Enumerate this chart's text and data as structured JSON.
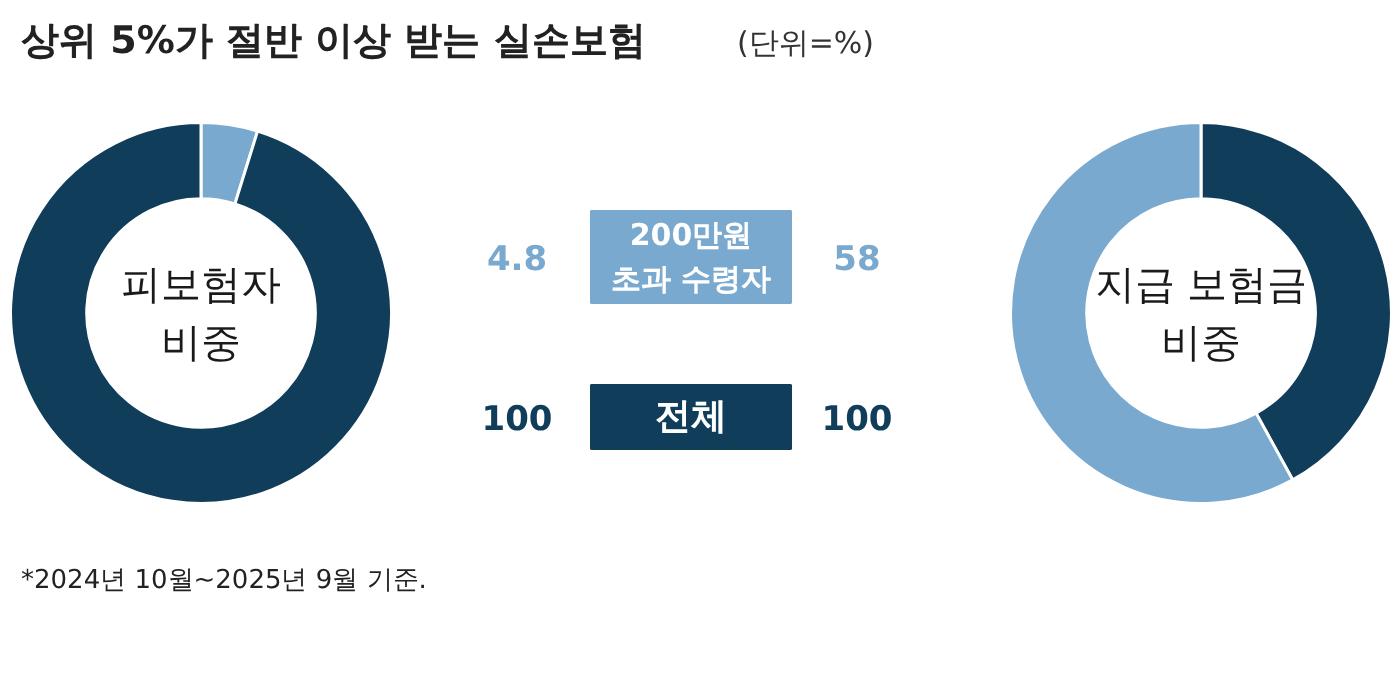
{
  "chart_data": [
    {
      "type": "other",
      "title": "상위 5%가 절반 이상 받는 실손보험",
      "subtitle": "(단위=%)"
    },
    {
      "type": "donut",
      "categories": [
        null,
        null
      ],
      "values": [
        4.8,
        95.2
      ],
      "colors": [
        "#7aa9cf",
        "#0f3d5a"
      ],
      "annotations": [
        "피보험자 비중"
      ]
    },
    {
      "type": "other",
      "categories": [
        "200만원 초과 수령자",
        "전체"
      ],
      "colors": [
        "#7aa9cf",
        "#0f3d5a"
      ],
      "series": [
        {
          "values": [
            4.8,
            100
          ]
        },
        {
          "values": [
            58,
            100
          ]
        }
      ],
      "data_labels": true
    },
    {
      "type": "donut",
      "categories": [
        null,
        null
      ],
      "values": [
        42,
        58
      ],
      "colors": [
        "#0f3d5a",
        "#7aa9cf"
      ],
      "annotations": [
        "지급 보험금 비중"
      ]
    },
    {
      "type": "other",
      "annotations": [
        "*2024년 10월~2025년 9월 기준."
      ]
    }
  ]
}
